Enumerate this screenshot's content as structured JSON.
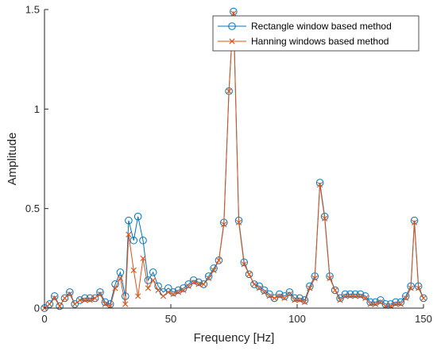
{
  "chart_data": {
    "type": "line",
    "xlabel": "Frequency [Hz]",
    "ylabel": "Amplitude",
    "xlim": [
      0,
      150
    ],
    "ylim": [
      0,
      1.5
    ],
    "xticks": [
      0,
      50,
      100,
      150
    ],
    "yticks": [
      0,
      0.5,
      1,
      1.5
    ],
    "xtick_labels": [
      "0",
      "50",
      "100",
      "150"
    ],
    "ytick_labels": [
      "0",
      "0.5",
      "1",
      "1.5"
    ],
    "grid": false,
    "legend_position": "top-right",
    "series": [
      {
        "name": "Rectangle window based method",
        "color": "#0072BD",
        "marker": "circle",
        "x": [
          0,
          2,
          4,
          6,
          8,
          10,
          12,
          14,
          16,
          18,
          20,
          22,
          24,
          26,
          28,
          30,
          32,
          33.3,
          35.3,
          37,
          39,
          41,
          43,
          45,
          47,
          49,
          51,
          53,
          55,
          57,
          59,
          61,
          63,
          65,
          67,
          69,
          71,
          73,
          74.8,
          76.9,
          79,
          81,
          83,
          85,
          87,
          89,
          91,
          93,
          95,
          97,
          99,
          101,
          103,
          105,
          107,
          109,
          110.9,
          112.9,
          115,
          117,
          119,
          121,
          123,
          125,
          127,
          129,
          131,
          133,
          135,
          137,
          139,
          141,
          143,
          145,
          146.4,
          148,
          150
        ],
        "y": [
          0,
          0.02,
          0.06,
          0.01,
          0.05,
          0.08,
          0.02,
          0.04,
          0.05,
          0.05,
          0.05,
          0.08,
          0.03,
          0.02,
          0.12,
          0.18,
          0.06,
          0.44,
          0.34,
          0.46,
          0.34,
          0.14,
          0.18,
          0.11,
          0.08,
          0.1,
          0.08,
          0.09,
          0.1,
          0.12,
          0.14,
          0.13,
          0.12,
          0.16,
          0.2,
          0.24,
          0.43,
          1.09,
          1.49,
          0.44,
          0.23,
          0.17,
          0.12,
          0.11,
          0.09,
          0.07,
          0.05,
          0.07,
          0.06,
          0.08,
          0.05,
          0.05,
          0.04,
          0.11,
          0.16,
          0.63,
          0.46,
          0.16,
          0.09,
          0.05,
          0.07,
          0.07,
          0.07,
          0.07,
          0.06,
          0.03,
          0.03,
          0.04,
          0.02,
          0.02,
          0.03,
          0.03,
          0.06,
          0.11,
          0.44,
          0.11,
          0.05
        ]
      },
      {
        "name": "Hanning windows based method",
        "color": "#D95319",
        "marker": "x",
        "x": [
          0,
          2,
          4,
          6,
          8,
          10,
          12,
          14,
          16,
          18,
          20,
          22,
          24,
          26,
          28,
          30,
          32,
          33.3,
          35.3,
          37,
          39,
          41,
          43,
          45,
          47,
          49,
          51,
          53,
          55,
          57,
          59,
          61,
          63,
          65,
          67,
          69,
          71,
          73,
          74.8,
          76.9,
          79,
          81,
          83,
          85,
          87,
          89,
          91,
          93,
          95,
          97,
          99,
          101,
          103,
          105,
          107,
          109,
          110.9,
          112.9,
          115,
          117,
          119,
          121,
          123,
          125,
          127,
          129,
          131,
          133,
          135,
          137,
          139,
          141,
          143,
          145,
          146.4,
          148,
          150
        ],
        "y": [
          0,
          0.02,
          0.05,
          0.01,
          0.05,
          0.07,
          0.02,
          0.04,
          0.04,
          0.04,
          0.05,
          0.07,
          0.02,
          0.01,
          0.1,
          0.15,
          0.02,
          0.37,
          0.19,
          0.06,
          0.25,
          0.1,
          0.14,
          0.09,
          0.06,
          0.08,
          0.07,
          0.08,
          0.09,
          0.11,
          0.13,
          0.12,
          0.12,
          0.15,
          0.19,
          0.24,
          0.42,
          1.09,
          1.48,
          0.43,
          0.22,
          0.17,
          0.12,
          0.1,
          0.08,
          0.06,
          0.05,
          0.06,
          0.05,
          0.07,
          0.04,
          0.04,
          0.03,
          0.1,
          0.15,
          0.62,
          0.45,
          0.15,
          0.09,
          0.04,
          0.06,
          0.06,
          0.06,
          0.06,
          0.05,
          0.02,
          0.02,
          0.03,
          0.01,
          0.01,
          0.02,
          0.02,
          0.05,
          0.1,
          0.43,
          0.1,
          0.05
        ]
      }
    ]
  }
}
